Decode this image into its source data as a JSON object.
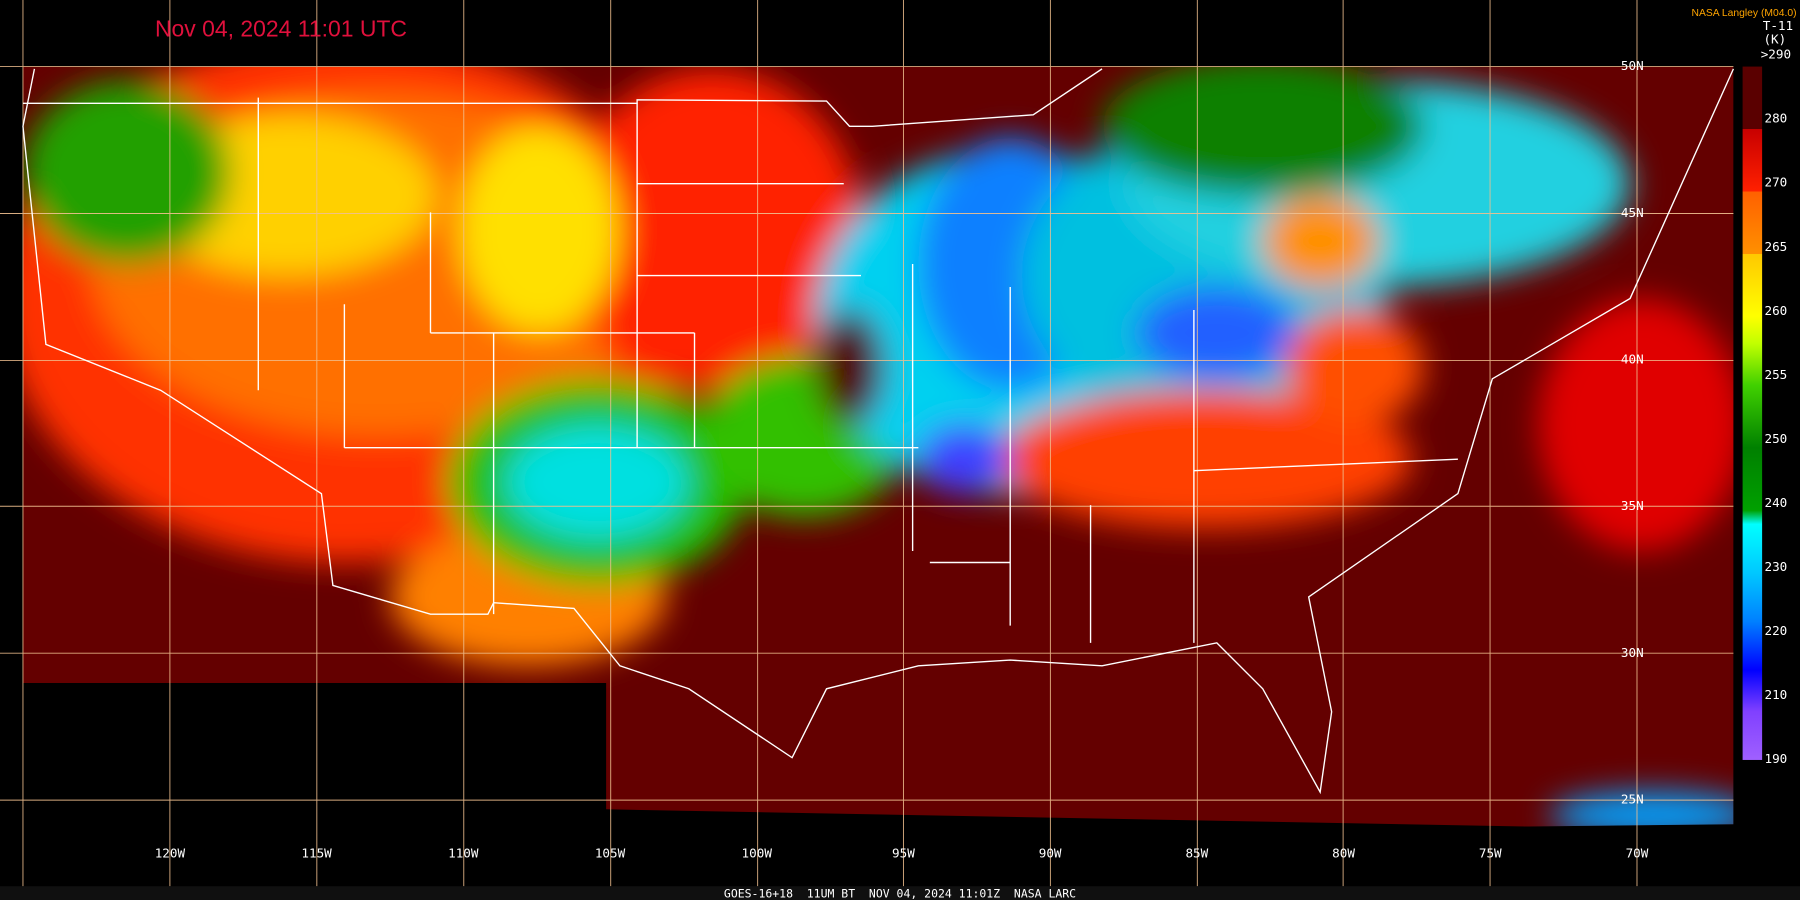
{
  "header": {
    "title": "Nov 04, 2024 11:01 UTC",
    "credit": "NASA Langley (M04.0)"
  },
  "colorbar": {
    "title": "T-11",
    "units": "(K)",
    "labels": [
      ">290",
      "280",
      "270",
      "265",
      "260",
      "255",
      "250",
      "240",
      "230",
      "220",
      "210",
      "190"
    ]
  },
  "map": {
    "longitude_labels": [
      "120W",
      "115W",
      "110W",
      "105W",
      "100W",
      "95W",
      "90W",
      "85W",
      "80W",
      "75W",
      "70W"
    ],
    "latitude_labels": [
      "50N",
      "45N",
      "40N",
      "35N",
      "30N",
      "25N"
    ]
  },
  "footer": "GOES-16+18  11UM BT  NOV 04, 2024 11:01Z  NASA LARC"
}
